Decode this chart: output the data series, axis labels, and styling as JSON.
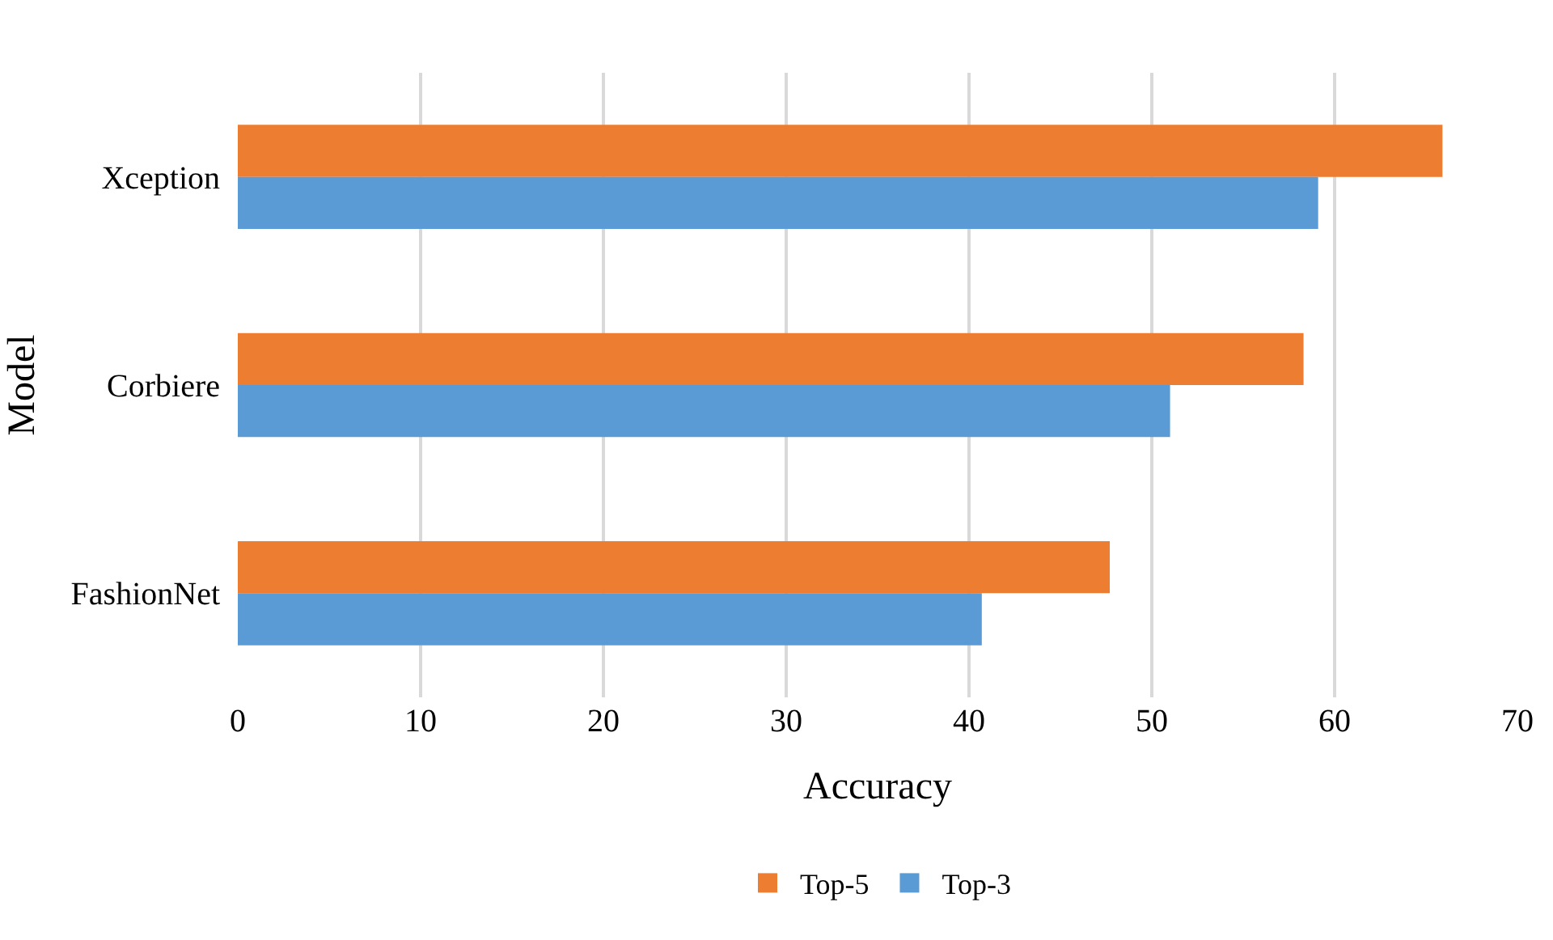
{
  "chart_data": {
    "type": "bar",
    "orientation": "horizontal",
    "xlabel": "Accuracy",
    "ylabel": "Model",
    "categories": [
      "Xception",
      "Corbiere",
      "FashionNet"
    ],
    "series": [
      {
        "name": "Top-5",
        "color": "#ed7d31",
        "values": [
          65.9,
          58.3,
          47.7
        ]
      },
      {
        "name": "Top-3",
        "color": "#5b9bd5",
        "values": [
          59.1,
          51.0,
          40.7
        ]
      }
    ],
    "xlim": [
      0,
      70
    ],
    "xticks": [
      0,
      10,
      20,
      30,
      40,
      50,
      60,
      70
    ],
    "grid": "x",
    "legend": "bottom"
  }
}
